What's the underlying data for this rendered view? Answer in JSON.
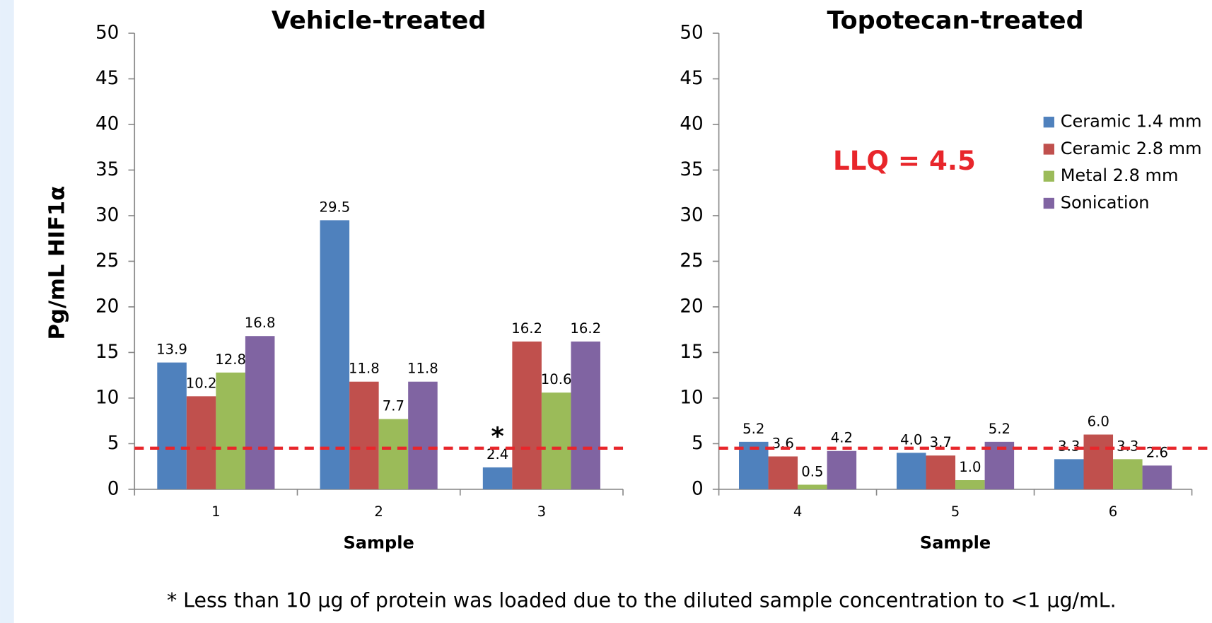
{
  "chart_data": [
    {
      "type": "bar",
      "title": "Vehicle-treated",
      "x_label": "Sample",
      "y_label": "Pg/mL HIF1α",
      "categories": [
        "1",
        "2",
        "3"
      ],
      "series": [
        {
          "color": "#4f81bd",
          "values": [
            13.9,
            29.5,
            2.4
          ],
          "value_labels": [
            "13.9",
            "29.5",
            "2.4"
          ]
        },
        {
          "color": "#c0504d",
          "values": [
            10.2,
            11.8,
            16.2
          ],
          "value_labels": [
            "10.2",
            "11.8",
            "16.2"
          ]
        },
        {
          "color": "#9bbb59",
          "values": [
            12.8,
            7.7,
            10.6
          ],
          "value_labels": [
            "12.8",
            "7.7",
            "10.6"
          ]
        },
        {
          "color": "#8064a2",
          "values": [
            16.8,
            11.8,
            16.2
          ],
          "value_labels": [
            "16.8",
            "11.8",
            "16.2"
          ]
        }
      ],
      "ylim": [
        0,
        50
      ],
      "yticks": [
        0,
        5,
        10,
        15,
        20,
        25,
        30,
        35,
        40,
        45,
        50
      ],
      "reference_line": 4.5,
      "reference_color": "#e8262b",
      "annotation": "*"
    },
    {
      "type": "bar",
      "title": "Topotecan-treated",
      "x_label": "Sample",
      "categories": [
        "4",
        "5",
        "6"
      ],
      "series": [
        {
          "name": "Ceramic 1.4 mm",
          "color": "#4f81bd",
          "values": [
            5.2,
            4.0,
            3.3
          ],
          "value_labels": [
            "5.2",
            "4.0",
            "3.3"
          ]
        },
        {
          "name": "Ceramic 2.8 mm",
          "color": "#c0504d",
          "values": [
            3.6,
            3.7,
            6.0
          ],
          "value_labels": [
            "3.6",
            "3.7",
            "6.0"
          ]
        },
        {
          "name": "Metal 2.8 mm",
          "color": "#9bbb59",
          "values": [
            0.5,
            1.0,
            3.3
          ],
          "value_labels": [
            "0.5",
            "1.0",
            "3.3"
          ]
        },
        {
          "name": "Sonication",
          "color": "#8064a2",
          "values": [
            4.2,
            5.2,
            2.6
          ],
          "value_labels": [
            "4.2",
            "5.2",
            "2.6"
          ]
        }
      ],
      "ylim": [
        0,
        50
      ],
      "yticks": [
        0,
        5,
        10,
        15,
        20,
        25,
        30,
        35,
        40,
        45,
        50
      ],
      "reference_line": 4.5,
      "reference_color": "#e8262b",
      "annotation": "LLQ = 4.5"
    }
  ],
  "footnote": "* Less than 10 µg of protein was loaded due to the diluted sample concentration to <1 µg/mL."
}
